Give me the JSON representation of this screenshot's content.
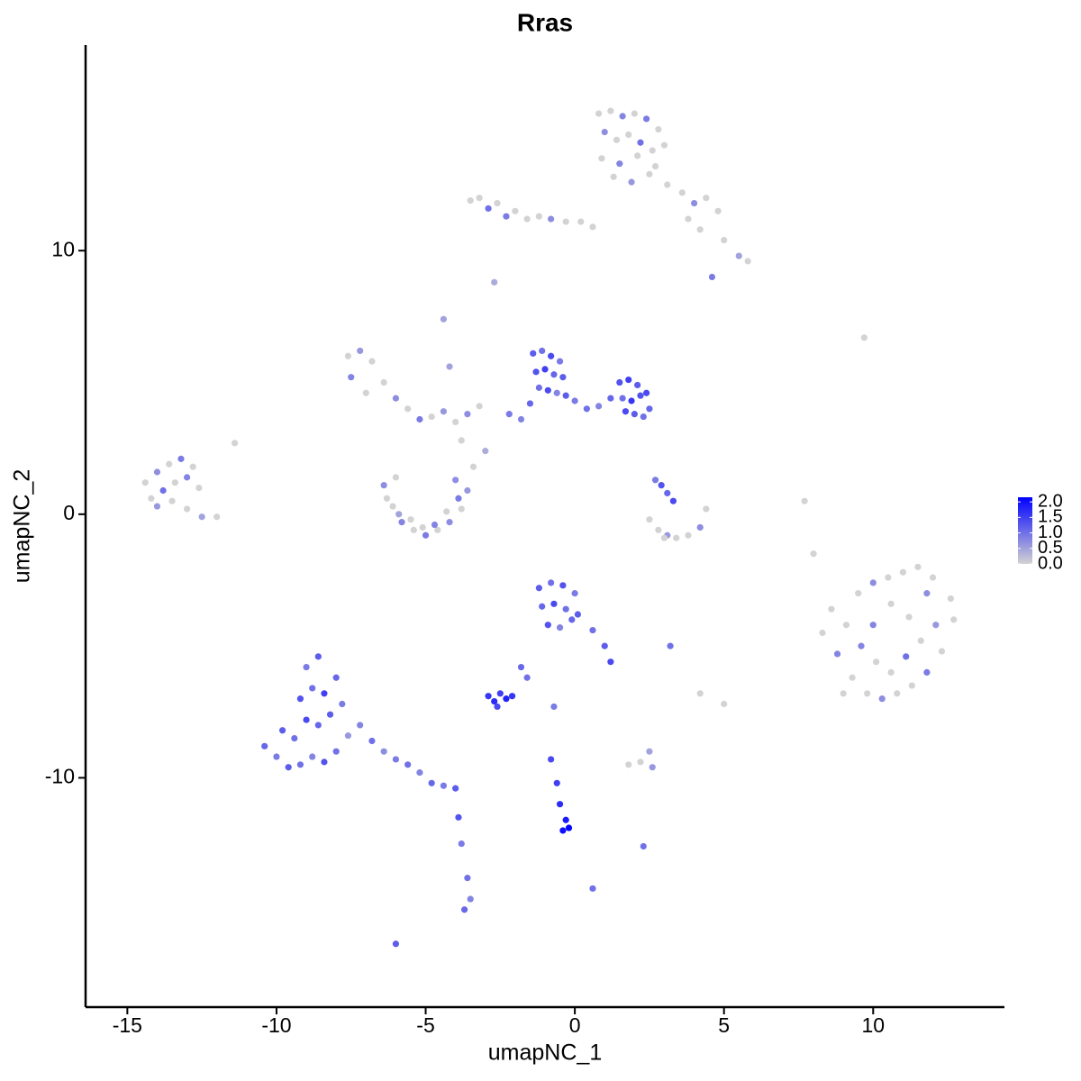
{
  "chart_data": {
    "type": "scatter",
    "title": "Rras",
    "x_label": "umapNC_1",
    "y_label": "umapNC_2",
    "xlim": [
      -16.4,
      14.4
    ],
    "ylim": [
      -18.7,
      17.8
    ],
    "xticks": [
      -15,
      -10,
      -5,
      0,
      5,
      10
    ],
    "yticks": [
      -10,
      0,
      10
    ],
    "color_low": "#d3d3d3",
    "color_high": "#0000ff",
    "colorbar_lim": [
      0,
      2.15
    ],
    "colorbar_ticks": [
      {
        "value": 0,
        "label": "0.0"
      },
      {
        "value": 0.5,
        "label": "0.5"
      },
      {
        "value": 1,
        "label": "1.0"
      },
      {
        "value": 1.5,
        "label": "1.5"
      },
      {
        "value": 2,
        "label": "2.0"
      }
    ],
    "x": [
      0.8,
      1.2,
      1.6,
      2.0,
      2.4,
      2.8,
      3.0,
      1.0,
      1.4,
      1.8,
      2.2,
      2.6,
      0.9,
      1.5,
      2.1,
      2.7,
      1.3,
      1.9,
      2.5,
      3.1,
      3.6,
      4.0,
      4.4,
      4.8,
      3.8,
      4.2,
      5.0,
      5.5,
      5.8,
      4.6,
      -3.5,
      -3.2,
      -2.9,
      -2.6,
      -2.3,
      -2.0,
      -1.6,
      -1.2,
      -0.8,
      -0.3,
      0.2,
      0.6,
      -2.7,
      -4.4,
      9.7,
      8.0,
      7.7,
      -1.4,
      -1.1,
      -0.8,
      -0.5,
      -1.3,
      -1.0,
      -0.7,
      -0.4,
      -1.2,
      -0.9,
      -0.6,
      -0.3,
      -1.5,
      0.0,
      0.4,
      0.8,
      1.2,
      1.5,
      1.8,
      2.1,
      2.4,
      1.6,
      1.9,
      2.2,
      2.5,
      1.7,
      2.0,
      2.3,
      -1.8,
      -2.2,
      -7.6,
      -7.2,
      -6.8,
      -7.5,
      -6.4,
      -6.0,
      -7.0,
      -5.6,
      -5.2,
      -4.8,
      -4.4,
      -4.0,
      -3.6,
      -3.2,
      -4.2,
      -3.8,
      -3.0,
      -3.4,
      -14.4,
      -14.0,
      -13.6,
      -13.2,
      -12.8,
      -14.2,
      -13.8,
      -13.4,
      -13.0,
      -12.6,
      -14.0,
      -13.5,
      -13.0,
      -12.5,
      -12.0,
      -11.4,
      -6.4,
      -6.1,
      -5.8,
      -5.4,
      -5.0,
      -4.6,
      -4.2,
      -3.8,
      -3.6,
      -6.3,
      -5.9,
      -5.5,
      -5.1,
      -4.7,
      -4.3,
      -3.9,
      -6.0,
      -4.0,
      2.5,
      2.8,
      3.1,
      3.4,
      3.8,
      4.2,
      2.9,
      3.1,
      3.3,
      2.7,
      3.0,
      4.4,
      8.3,
      8.8,
      9.3,
      9.8,
      10.3,
      10.8,
      11.3,
      11.8,
      12.3,
      12.7,
      8.6,
      9.1,
      9.6,
      10.1,
      10.6,
      11.1,
      11.6,
      12.1,
      12.6,
      9.0,
      9.5,
      10.0,
      10.5,
      11.0,
      11.5,
      12.0,
      10.0,
      10.6,
      11.2,
      11.8,
      -10.4,
      -10.0,
      -9.6,
      -9.2,
      -8.8,
      -8.4,
      -8.0,
      -7.6,
      -9.8,
      -9.4,
      -9.0,
      -8.6,
      -8.2,
      -7.8,
      -9.2,
      -8.8,
      -8.4,
      -8.0,
      -9.0,
      -8.6,
      -7.2,
      -6.8,
      -6.4,
      -6.0,
      -5.6,
      -5.2,
      -4.8,
      -4.4,
      -4.0,
      -3.9,
      -3.8,
      -3.6,
      -3.5,
      -3.7,
      -1.2,
      -0.8,
      -0.4,
      0.0,
      -1.1,
      -0.7,
      -0.3,
      0.1,
      -0.9,
      -0.5,
      -0.1,
      0.6,
      1.0,
      1.2,
      -2.9,
      -2.7,
      -2.5,
      -2.3,
      -2.1,
      -2.6,
      -1.6,
      -1.8,
      -0.8,
      -0.6,
      -0.5,
      -0.3,
      -0.2,
      -0.4,
      0.6,
      2.2,
      2.6,
      1.8,
      2.5,
      2.3,
      -6.0,
      3.2,
      5.0,
      4.2,
      -0.7
    ],
    "values": [
      15.2,
      15.3,
      15.1,
      15.2,
      15.0,
      14.6,
      14.0,
      14.5,
      14.2,
      14.4,
      14.1,
      13.8,
      13.5,
      13.3,
      13.6,
      13.2,
      12.8,
      12.6,
      12.9,
      12.5,
      12.2,
      11.8,
      12.0,
      11.5,
      11.2,
      10.8,
      10.4,
      9.8,
      9.6,
      9.0,
      11.9,
      12.0,
      11.6,
      11.8,
      11.3,
      11.5,
      11.2,
      11.3,
      11.2,
      11.1,
      11.1,
      10.9,
      8.8,
      7.4,
      6.7,
      -1.5,
      0.5,
      6.1,
      6.2,
      6.0,
      5.8,
      5.4,
      5.5,
      5.3,
      5.2,
      4.8,
      4.7,
      4.6,
      4.5,
      4.2,
      4.3,
      4.0,
      4.1,
      4.4,
      5.0,
      5.1,
      4.9,
      4.6,
      4.4,
      4.3,
      4.5,
      4.0,
      3.9,
      3.8,
      3.7,
      3.6,
      3.8,
      6.0,
      6.2,
      5.8,
      5.2,
      5.0,
      4.4,
      4.6,
      4.0,
      3.6,
      3.7,
      3.9,
      3.5,
      3.8,
      4.1,
      5.6,
      2.8,
      2.4,
      1.8,
      1.2,
      1.6,
      1.9,
      2.1,
      1.8,
      0.6,
      0.9,
      1.2,
      1.4,
      1.0,
      0.3,
      0.5,
      0.2,
      -0.1,
      -0.1,
      2.7,
      1.1,
      0.3,
      -0.3,
      -0.6,
      -0.8,
      -0.6,
      -0.3,
      0.2,
      0.9,
      0.6,
      0.0,
      -0.2,
      -0.5,
      -0.4,
      0.1,
      0.6,
      1.4,
      1.3,
      -0.2,
      -0.6,
      -0.8,
      -0.9,
      -0.8,
      -0.5,
      1.1,
      0.8,
      0.5,
      1.3,
      -0.9,
      0.2,
      -4.5,
      -5.3,
      -6.2,
      -6.8,
      -7.0,
      -6.8,
      -6.5,
      -6.0,
      -5.2,
      -4.0,
      -3.6,
      -4.2,
      -5.0,
      -5.6,
      -6.0,
      -5.4,
      -4.8,
      -4.2,
      -3.2,
      -6.8,
      -3.0,
      -2.6,
      -2.4,
      -2.2,
      -2.0,
      -2.4,
      -4.2,
      -3.4,
      -3.9,
      -3.0,
      -8.8,
      -9.2,
      -9.6,
      -9.5,
      -9.2,
      -9.4,
      -9.0,
      -8.4,
      -8.2,
      -8.5,
      -7.8,
      -8.0,
      -7.6,
      -7.2,
      -7.0,
      -6.6,
      -6.8,
      -6.2,
      -5.8,
      -5.4,
      -8.0,
      -8.6,
      -9.0,
      -9.3,
      -9.5,
      -9.8,
      -10.2,
      -10.3,
      -10.4,
      -11.5,
      -12.5,
      -13.8,
      -14.6,
      -15.0,
      -2.8,
      -2.6,
      -2.7,
      -3.0,
      -3.5,
      -3.4,
      -3.6,
      -3.8,
      -4.2,
      -4.3,
      -4.0,
      -4.4,
      -5.0,
      -5.6,
      -6.9,
      -7.1,
      -6.8,
      -7.0,
      -6.9,
      -7.3,
      -6.2,
      -5.8,
      -9.3,
      -10.2,
      -11.0,
      -11.6,
      -11.9,
      -12.0,
      -14.2,
      -9.4,
      -9.6,
      -9.5,
      -9.0,
      -12.6,
      -16.3,
      -5.0,
      -7.2,
      -6.8,
      -7.3
    ],
    "expression": [
      0,
      0,
      0.8,
      0,
      0.9,
      0,
      0,
      0.7,
      0,
      0,
      1.0,
      0,
      0,
      0.8,
      0,
      0,
      0,
      0.6,
      0,
      0,
      0,
      0.7,
      0,
      0,
      0,
      0,
      0,
      0.5,
      0,
      0.9,
      0,
      0,
      1.0,
      0,
      0.9,
      0,
      0,
      0,
      0.7,
      0,
      0,
      0,
      0.4,
      0.5,
      0,
      0,
      0,
      1.2,
      1.0,
      1.4,
      0.9,
      1.3,
      1.5,
      1.1,
      1.2,
      1.0,
      1.4,
      0.8,
      1.2,
      1.1,
      0.9,
      1.0,
      0.8,
      1.1,
      1.3,
      1.5,
      1.2,
      1.4,
      1.0,
      1.6,
      1.3,
      1.1,
      1.4,
      1.2,
      1.0,
      0.8,
      0.9,
      0,
      0.6,
      0,
      0.8,
      0,
      0.7,
      0,
      0,
      0.9,
      0,
      0.6,
      0,
      0.7,
      0,
      0.5,
      0,
      0.4,
      0,
      0,
      0.7,
      0,
      0.9,
      0,
      0,
      1.0,
      0,
      0.8,
      0,
      0.6,
      0,
      0,
      0.5,
      0,
      0,
      0.7,
      0,
      0.8,
      0,
      0.9,
      0,
      0.7,
      0,
      0.6,
      0,
      0.5,
      0,
      0,
      0.8,
      0,
      0.9,
      0,
      0.7,
      0,
      0,
      0.6,
      0,
      0,
      0.7,
      1.3,
      1.1,
      1.4,
      0.9,
      0,
      0,
      0,
      0.8,
      0,
      0,
      0.7,
      0,
      0,
      0.9,
      0,
      0,
      0,
      0,
      0.8,
      0,
      0,
      1.0,
      0,
      0.6,
      0,
      0,
      0,
      0.7,
      0,
      0,
      0,
      0,
      0.8,
      0,
      0,
      0.7,
      1.1,
      0.9,
      1.2,
      1.0,
      0.8,
      1.3,
      1.0,
      0.6,
      1.2,
      1.0,
      1.4,
      1.1,
      1.2,
      0.9,
      1.3,
      1.0,
      1.5,
      1.1,
      0.9,
      1.2,
      0.8,
      1.0,
      0.7,
      0.9,
      1.0,
      0.8,
      1.1,
      0.9,
      1.2,
      1.3,
      0.9,
      1.0,
      0.8,
      1.1,
      1.2,
      1.0,
      1.3,
      0.9,
      1.1,
      1.4,
      1.0,
      1.2,
      1.3,
      0.8,
      1.1,
      1.0,
      1.2,
      1.4,
      1.6,
      1.7,
      1.5,
      1.8,
      1.6,
      1.4,
      1.0,
      1.1,
      1.4,
      1.5,
      1.7,
      1.9,
      2.1,
      2.0,
      1.0,
      0,
      0.6,
      0,
      0.5,
      1.0,
      1.2,
      1.0,
      0,
      0,
      0.9
    ]
  }
}
